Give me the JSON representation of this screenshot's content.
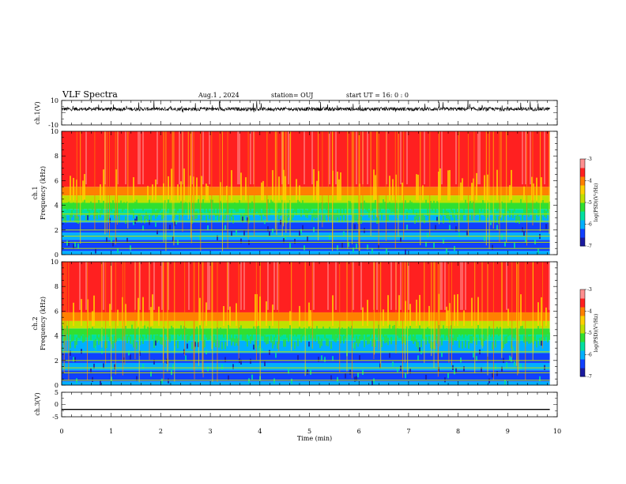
{
  "header": {
    "title": "VLF Spectra",
    "date": "Aug.1 , 2024",
    "station": "station= OUJ",
    "start": "start UT = 16: 0 : 0"
  },
  "colors": {
    "spectrum": [
      "#1a1aa0",
      "#1040ff",
      "#00b0ff",
      "#00e0a0",
      "#30e030",
      "#c0e000",
      "#ffd000",
      "#ff8000",
      "#ff2020",
      "#ff9090"
    ],
    "trace": "#000000"
  },
  "chart_data": [
    {
      "type": "line",
      "id": "ch1-waveform",
      "ylabel": "ch.1(V)",
      "ylim": [
        -10,
        10
      ],
      "yticks": [
        "10",
        "-10"
      ],
      "baseline": 3,
      "noise_amplitude": 1.5,
      "spike_max": 10
    },
    {
      "type": "heatmap",
      "id": "ch1-spectrogram",
      "ylabel": "ch.1",
      "ylabel2": "Frequency (kHz)",
      "ylim": [
        0,
        10
      ],
      "yticks": [
        "0",
        "2",
        "4",
        "6",
        "8",
        "10"
      ],
      "colorbar": {
        "label": "log(PSD)(V²/Hz)",
        "range": [
          -7,
          -3
        ],
        "ticks": [
          "-3",
          "-4",
          "-5",
          "-6",
          "-7"
        ]
      },
      "noise_floor_khz": 3.2,
      "lines_khz": [
        0.5,
        1.0,
        1.5,
        2.0,
        2.7,
        3.3
      ]
    },
    {
      "type": "heatmap",
      "id": "ch2-spectrogram",
      "ylabel": "ch.2",
      "ylabel2": "Frequency (kHz)",
      "ylim": [
        0,
        10
      ],
      "yticks": [
        "0",
        "2",
        "4",
        "6",
        "8",
        "10"
      ],
      "colorbar": {
        "label": "log(PSD)(V²/Hz)",
        "range": [
          -7,
          -3
        ],
        "ticks": [
          "-3",
          "-4",
          "-5",
          "-6",
          "-7"
        ]
      },
      "noise_floor_khz": 3.6,
      "lines_khz": [
        0.4,
        1.0,
        1.4,
        2.0,
        2.7
      ]
    },
    {
      "type": "line",
      "id": "ch3-waveform",
      "ylabel": "ch.3(V)",
      "ylim": [
        -5,
        5
      ],
      "yticks": [
        "5",
        "0",
        "-5"
      ],
      "x": [
        0,
        9.85
      ],
      "y": [
        -2,
        -2
      ]
    }
  ],
  "xaxis": {
    "label": "Time (min)",
    "range": [
      0,
      10
    ],
    "ticks": [
      "0",
      "1",
      "2",
      "3",
      "4",
      "5",
      "6",
      "7",
      "8",
      "9",
      "10"
    ],
    "data_end": 9.85
  }
}
